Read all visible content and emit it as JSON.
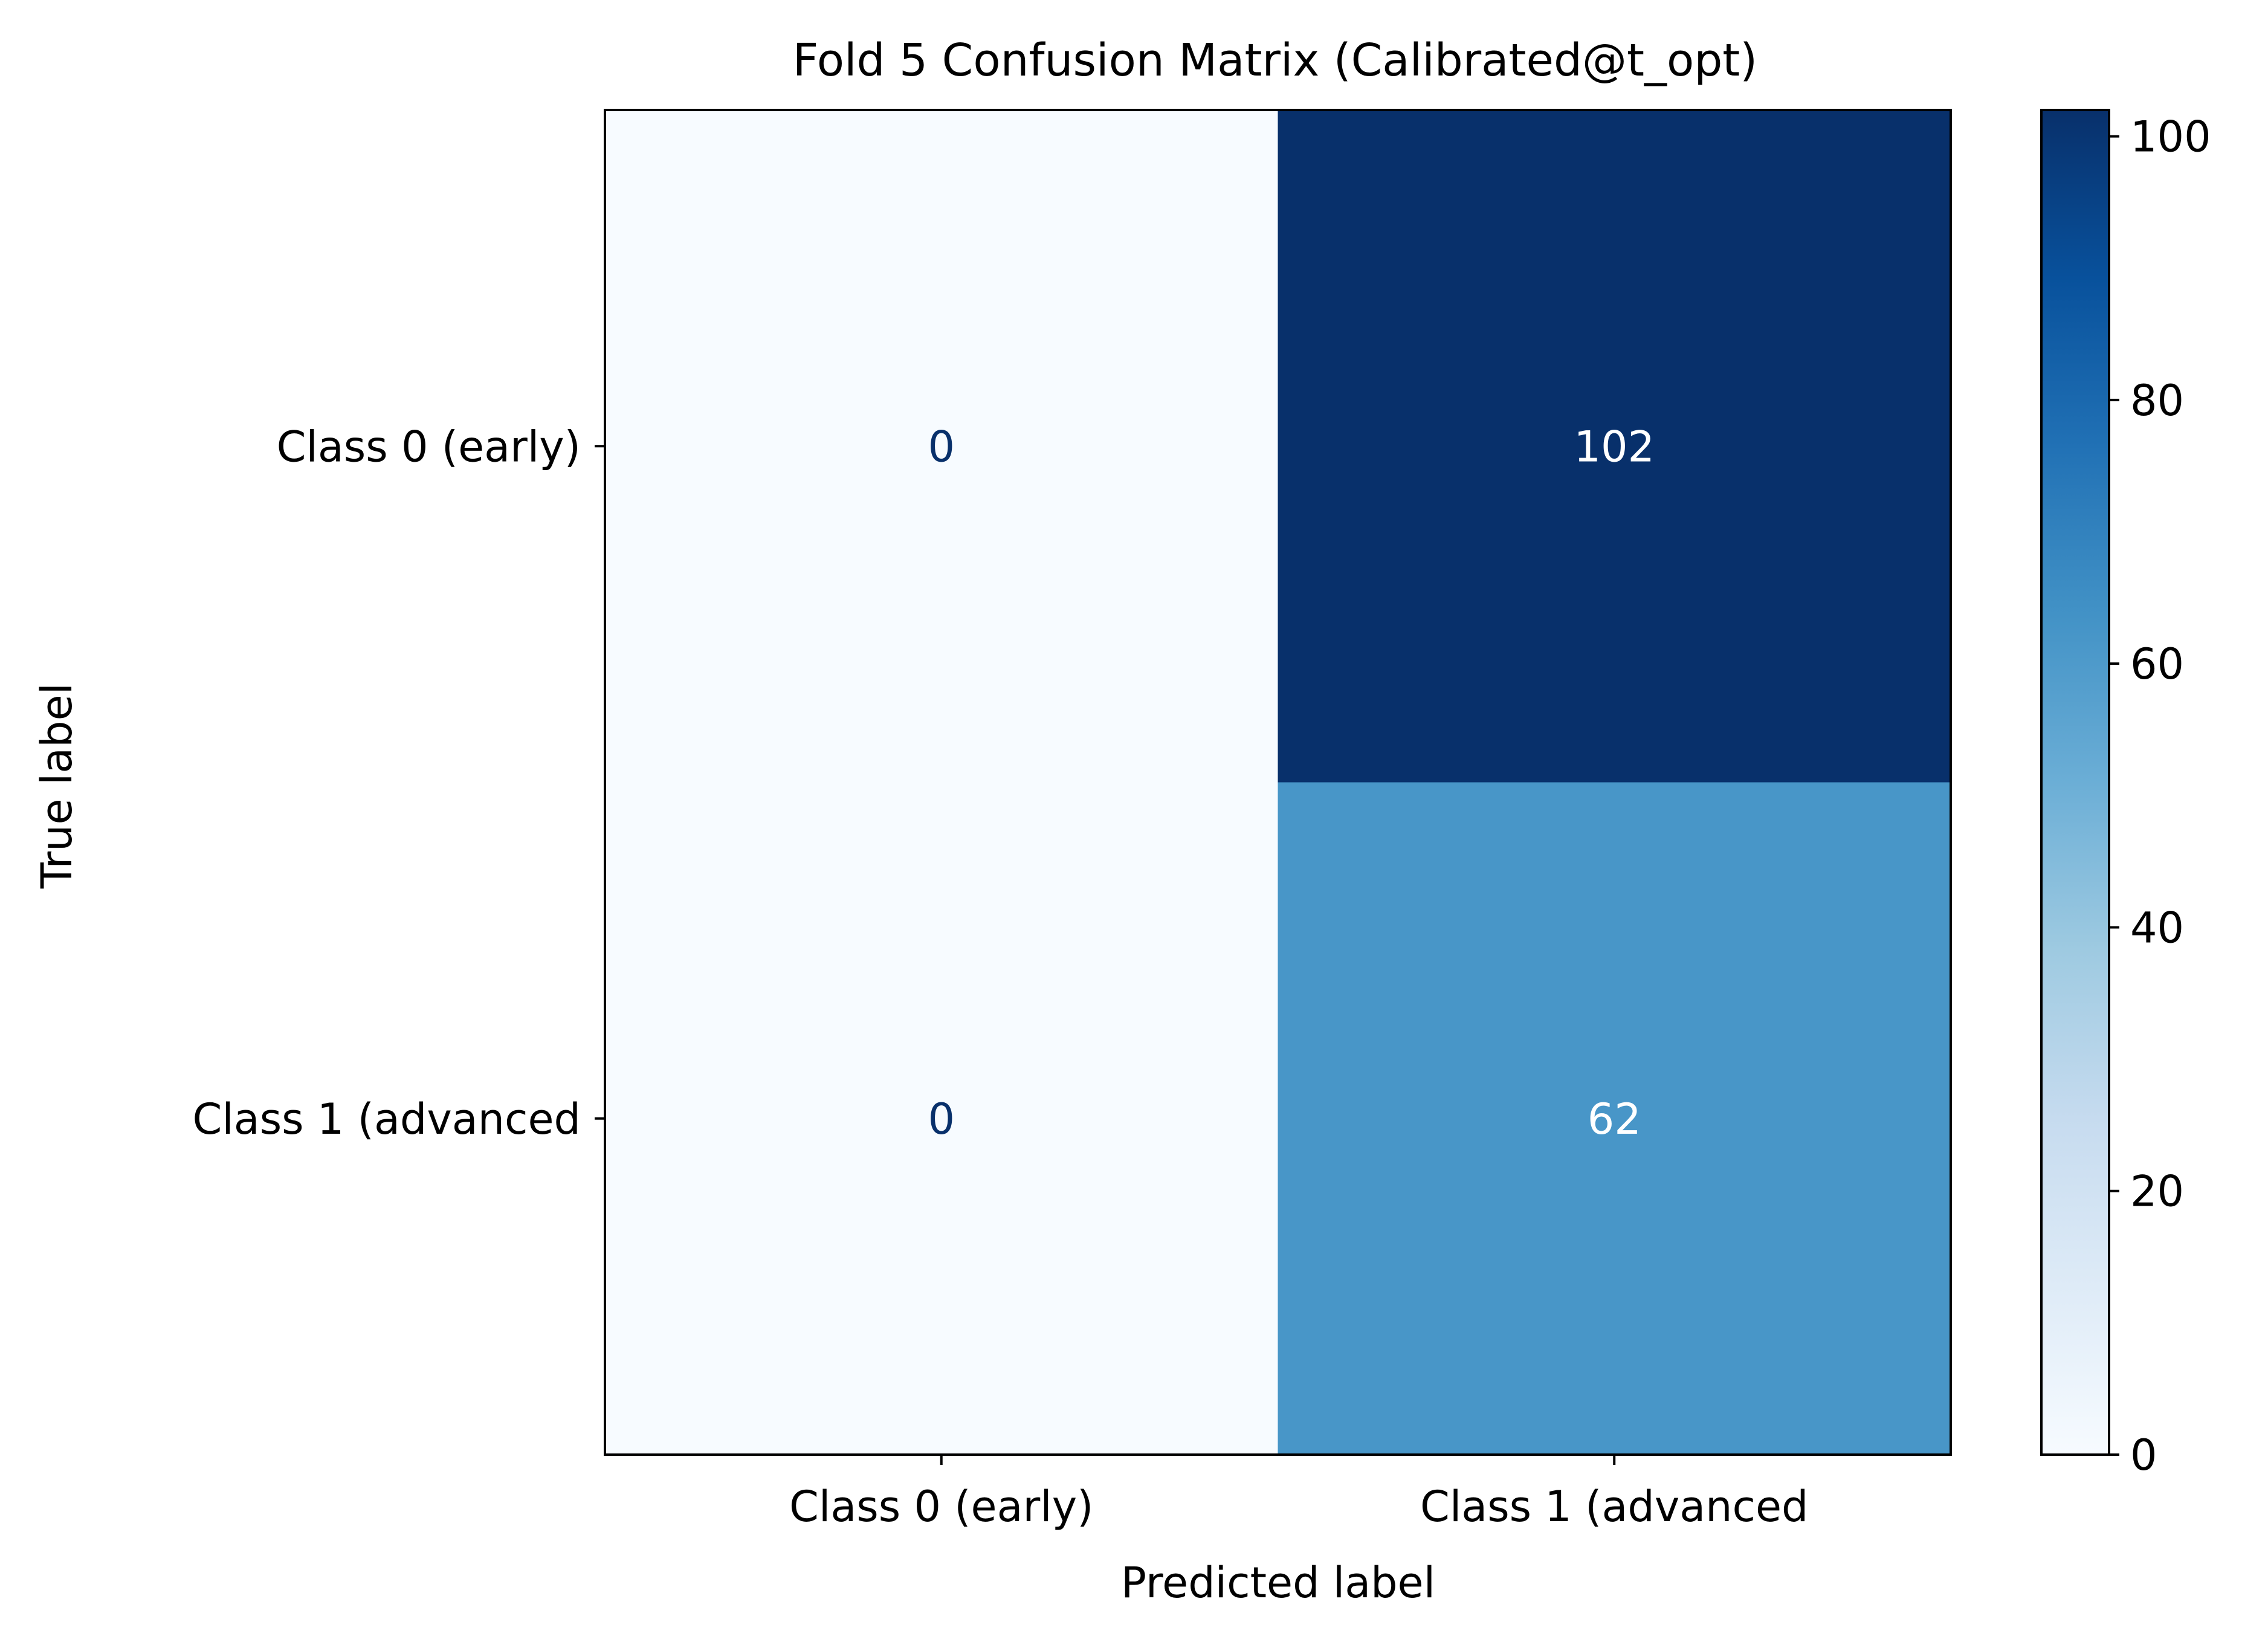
{
  "chart_data": {
    "type": "heatmap",
    "title": "Fold 5 Confusion Matrix (Calibrated@t_opt)",
    "xlabel": "Predicted label",
    "ylabel": "True label",
    "x_categories": [
      "Class 0 (early)",
      "Class 1 (advanced"
    ],
    "y_categories": [
      "Class 0 (early)",
      "Class 1 (advanced"
    ],
    "matrix": [
      [
        0,
        102
      ],
      [
        0,
        62
      ]
    ],
    "colormap": "Blues",
    "colorbar": {
      "range": [
        0,
        102
      ],
      "ticks": [
        0,
        20,
        40,
        60,
        80,
        100
      ],
      "tick_labels": [
        "0",
        "20",
        "40",
        "60",
        "80",
        "100"
      ]
    },
    "text_colors": {
      "light_cell": "#08306b",
      "dark_cell": "#ffffff"
    },
    "grid": false
  }
}
